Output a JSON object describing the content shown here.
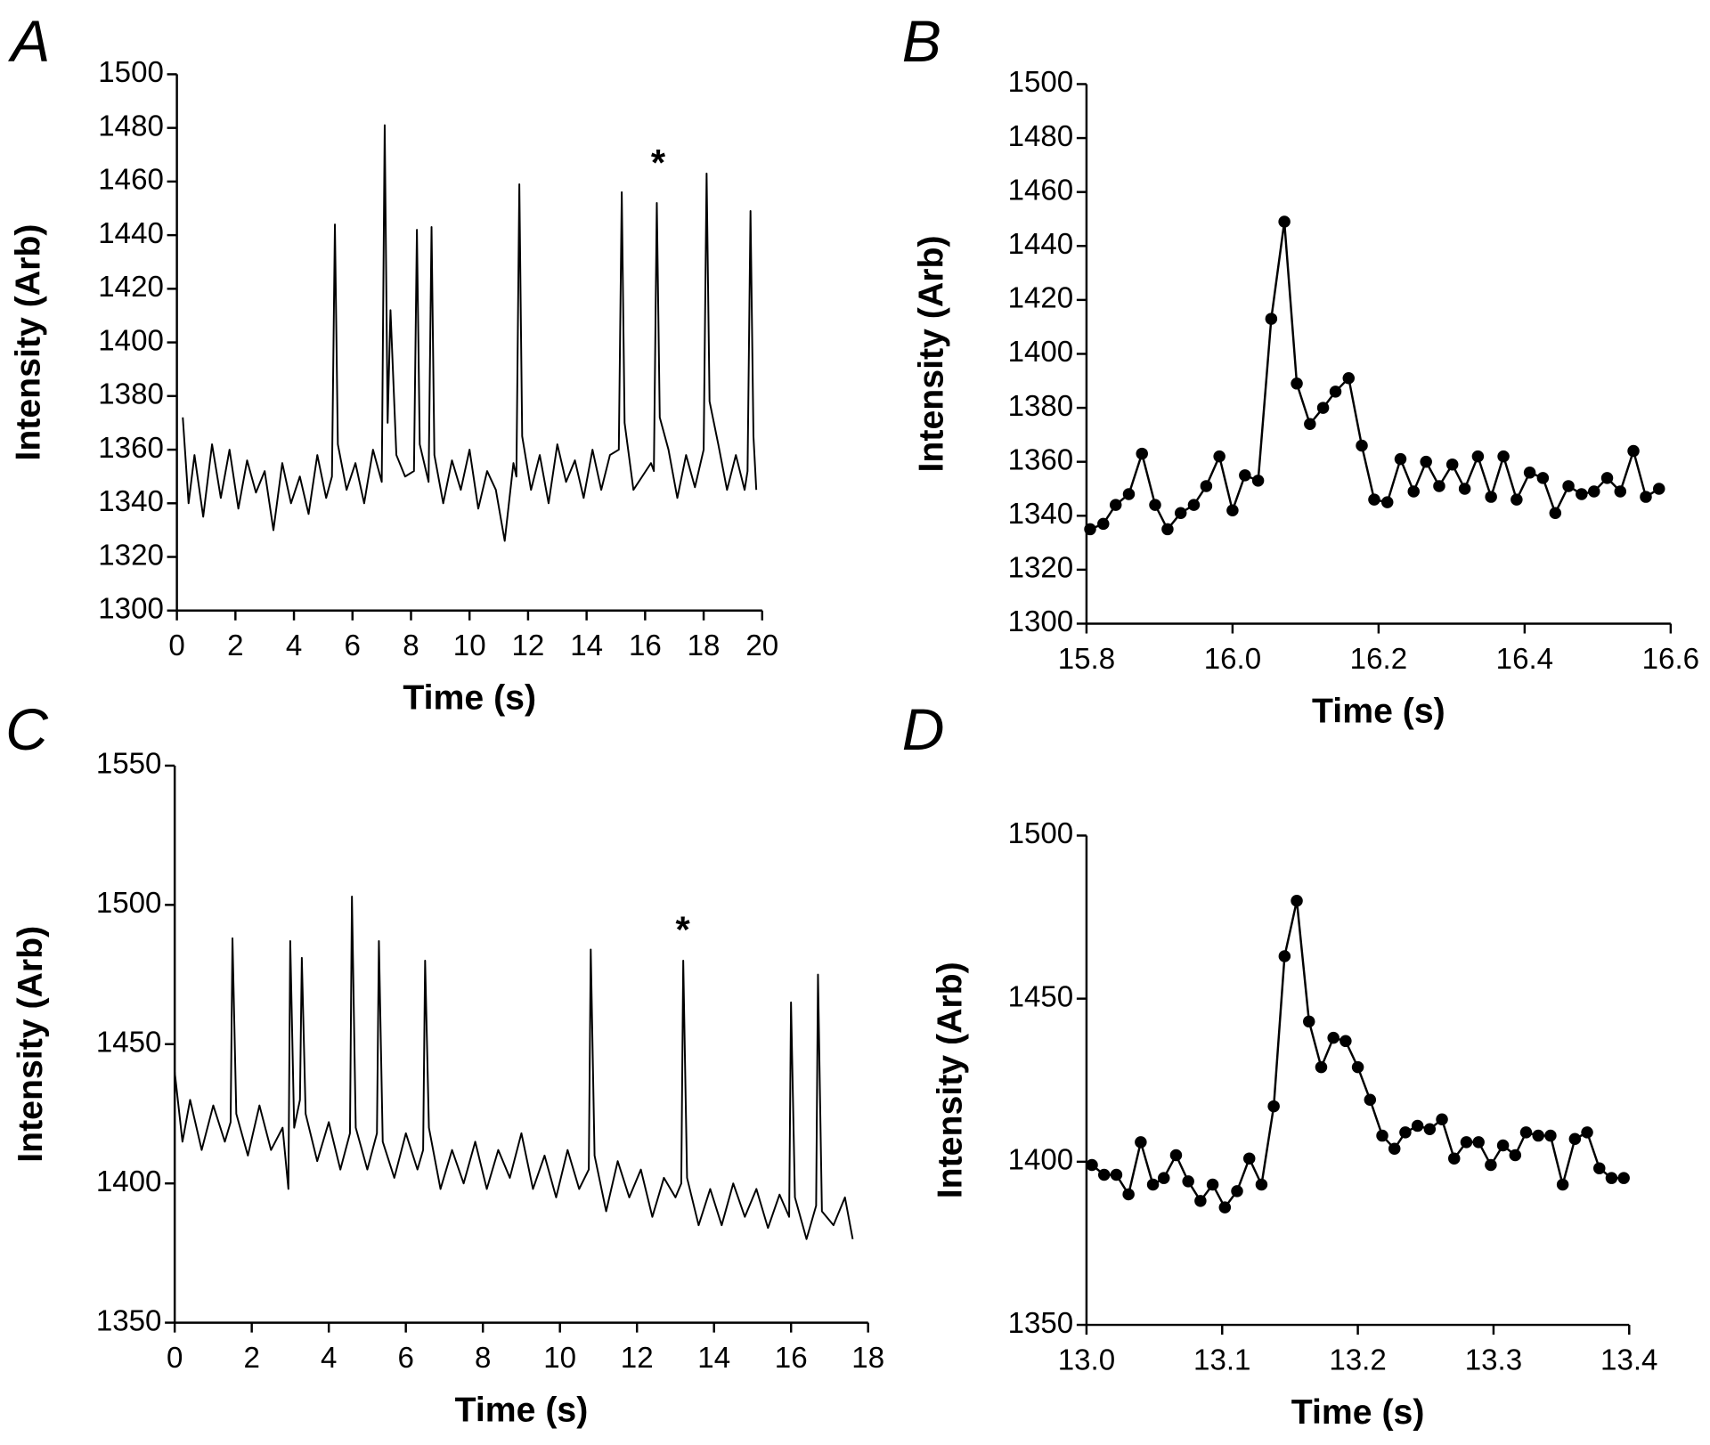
{
  "chart_data": [
    {
      "type": "line",
      "label": "A",
      "x_label": "Time (s)",
      "y_label": "Intensity (Arb)",
      "annotation": "*",
      "color": "#000000",
      "markers": false,
      "xlim": [
        0,
        20
      ],
      "ylim": [
        1300,
        1500
      ],
      "xticks": [
        0,
        2,
        4,
        6,
        8,
        10,
        12,
        14,
        16,
        18,
        20
      ],
      "yticks": [
        1300,
        1320,
        1340,
        1360,
        1380,
        1400,
        1420,
        1440,
        1460,
        1480,
        1500
      ],
      "x": [
        0.2,
        0.4,
        0.6,
        0.9,
        1.2,
        1.5,
        1.8,
        2.1,
        2.4,
        2.7,
        3.0,
        3.3,
        3.6,
        3.9,
        4.2,
        4.5,
        4.8,
        5.1,
        5.3,
        5.4,
        5.5,
        5.8,
        6.1,
        6.4,
        6.7,
        7.0,
        7.1,
        7.2,
        7.3,
        7.5,
        7.8,
        8.1,
        8.2,
        8.3,
        8.6,
        8.7,
        8.8,
        9.1,
        9.4,
        9.7,
        10.0,
        10.3,
        10.6,
        10.9,
        11.2,
        11.5,
        11.6,
        11.7,
        11.8,
        12.1,
        12.4,
        12.7,
        13.0,
        13.3,
        13.6,
        13.9,
        14.2,
        14.5,
        14.8,
        15.1,
        15.2,
        15.3,
        15.6,
        15.9,
        16.2,
        16.3,
        16.4,
        16.5,
        16.8,
        17.1,
        17.4,
        17.7,
        18.0,
        18.1,
        18.2,
        18.5,
        18.8,
        19.1,
        19.4,
        19.5,
        19.6,
        19.7,
        19.8
      ],
      "values": [
        1372,
        1340,
        1358,
        1335,
        1362,
        1342,
        1360,
        1338,
        1356,
        1344,
        1352,
        1330,
        1355,
        1340,
        1350,
        1336,
        1358,
        1342,
        1350,
        1444,
        1362,
        1345,
        1355,
        1340,
        1360,
        1348,
        1481,
        1370,
        1412,
        1358,
        1350,
        1352,
        1442,
        1362,
        1348,
        1443,
        1358,
        1340,
        1356,
        1345,
        1360,
        1338,
        1352,
        1345,
        1326,
        1355,
        1350,
        1459,
        1365,
        1345,
        1358,
        1340,
        1362,
        1348,
        1356,
        1342,
        1360,
        1345,
        1358,
        1360,
        1456,
        1370,
        1345,
        1350,
        1355,
        1352,
        1452,
        1372,
        1360,
        1342,
        1358,
        1346,
        1360,
        1463,
        1378,
        1362,
        1345,
        1358,
        1345,
        1352,
        1449,
        1365,
        1345
      ]
    },
    {
      "type": "line",
      "label": "B",
      "x_label": "Time (s)",
      "y_label": "Intensity (Arb)",
      "color": "#000000",
      "markers": true,
      "xlim": [
        15.8,
        16.6
      ],
      "ylim": [
        1300,
        1500
      ],
      "xticks": [
        15.8,
        {
          "value": 16,
          "label": "16.0"
        },
        16.2,
        16.4,
        16.6
      ],
      "yticks": [
        1300,
        1320,
        1340,
        1360,
        1380,
        1400,
        1420,
        1440,
        1460,
        1480,
        1500
      ],
      "x": [
        15.805,
        15.823,
        15.84,
        15.858,
        15.876,
        15.894,
        15.911,
        15.929,
        15.947,
        15.964,
        15.982,
        16.0,
        16.017,
        16.035,
        16.053,
        16.071,
        16.088,
        16.106,
        16.124,
        16.141,
        16.159,
        16.177,
        16.194,
        16.212,
        16.23,
        16.248,
        16.265,
        16.283,
        16.301,
        16.318,
        16.336,
        16.354,
        16.371,
        16.389,
        16.407,
        16.425,
        16.442,
        16.46,
        16.478,
        16.495,
        16.513,
        16.531,
        16.549,
        16.566,
        16.584
      ],
      "values": [
        1335,
        1337,
        1344,
        1348,
        1363,
        1344,
        1335,
        1341,
        1344,
        1351,
        1362,
        1342,
        1355,
        1353,
        1413,
        1449,
        1389,
        1374,
        1380,
        1386,
        1391,
        1366,
        1346,
        1345,
        1361,
        1349,
        1360,
        1351,
        1359,
        1350,
        1362,
        1347,
        1362,
        1346,
        1356,
        1354,
        1341,
        1351,
        1348,
        1349,
        1354,
        1349,
        1364,
        1347,
        1350
      ]
    },
    {
      "type": "line",
      "label": "C",
      "x_label": "Time (s)",
      "y_label": "Intensity (Arb)",
      "annotation": "*",
      "color": "#000000",
      "markers": false,
      "xlim": [
        0,
        18
      ],
      "ylim": [
        1350,
        1550
      ],
      "xticks": [
        0,
        2,
        4,
        6,
        8,
        10,
        12,
        14,
        16,
        18
      ],
      "yticks": [
        1350,
        1400,
        1450,
        1500,
        1550
      ],
      "x": [
        0,
        0.2,
        0.4,
        0.7,
        1.0,
        1.3,
        1.45,
        1.5,
        1.6,
        1.9,
        2.2,
        2.5,
        2.8,
        2.95,
        3.0,
        3.1,
        3.25,
        3.3,
        3.4,
        3.7,
        4.0,
        4.3,
        4.55,
        4.6,
        4.7,
        5.0,
        5.25,
        5.3,
        5.4,
        5.7,
        6.0,
        6.3,
        6.45,
        6.5,
        6.6,
        6.9,
        7.2,
        7.5,
        7.8,
        8.1,
        8.4,
        8.7,
        9.0,
        9.3,
        9.6,
        9.9,
        10.2,
        10.5,
        10.75,
        10.8,
        10.9,
        11.2,
        11.5,
        11.8,
        12.1,
        12.4,
        12.7,
        13.0,
        13.15,
        13.2,
        13.3,
        13.6,
        13.9,
        14.2,
        14.5,
        14.8,
        15.1,
        15.4,
        15.7,
        15.95,
        16.0,
        16.1,
        16.4,
        16.65,
        16.7,
        16.8,
        17.1,
        17.4,
        17.6
      ],
      "values": [
        1440,
        1415,
        1430,
        1412,
        1428,
        1415,
        1422,
        1488,
        1425,
        1410,
        1428,
        1412,
        1420,
        1398,
        1487,
        1420,
        1430,
        1481,
        1425,
        1408,
        1422,
        1405,
        1418,
        1503,
        1420,
        1405,
        1418,
        1487,
        1415,
        1402,
        1418,
        1405,
        1412,
        1480,
        1420,
        1398,
        1412,
        1400,
        1415,
        1398,
        1412,
        1402,
        1418,
        1398,
        1410,
        1395,
        1412,
        1398,
        1405,
        1484,
        1410,
        1390,
        1408,
        1395,
        1405,
        1388,
        1402,
        1395,
        1400,
        1480,
        1402,
        1385,
        1398,
        1385,
        1400,
        1388,
        1398,
        1384,
        1396,
        1388,
        1465,
        1395,
        1380,
        1392,
        1475,
        1390,
        1385,
        1395,
        1380
      ]
    },
    {
      "type": "line",
      "label": "D",
      "x_label": "Time (s)",
      "y_label": "Intensity (Arb)",
      "color": "#000000",
      "markers": true,
      "xlim": [
        13.0,
        13.4
      ],
      "ylim": [
        1350,
        1500
      ],
      "xticks": [
        {
          "value": 13,
          "label": "13.0"
        },
        13.1,
        13.2,
        13.3,
        13.4
      ],
      "yticks": [
        1350,
        1400,
        1450,
        1500
      ],
      "x": [
        13.004,
        13.013,
        13.022,
        13.031,
        13.04,
        13.049,
        13.057,
        13.066,
        13.075,
        13.084,
        13.093,
        13.102,
        13.111,
        13.12,
        13.129,
        13.138,
        13.146,
        13.155,
        13.164,
        13.173,
        13.182,
        13.191,
        13.2,
        13.209,
        13.218,
        13.227,
        13.235,
        13.244,
        13.253,
        13.262,
        13.271,
        13.28,
        13.289,
        13.298,
        13.307,
        13.316,
        13.324,
        13.333,
        13.342,
        13.351,
        13.36,
        13.369,
        13.378,
        13.387,
        13.396
      ],
      "values": [
        1399,
        1396,
        1396,
        1390,
        1406,
        1393,
        1395,
        1402,
        1394,
        1388,
        1393,
        1386,
        1391,
        1401,
        1393,
        1417,
        1463,
        1480,
        1443,
        1429,
        1438,
        1437,
        1429,
        1419,
        1408,
        1404,
        1409,
        1411,
        1410,
        1413,
        1401,
        1406,
        1406,
        1399,
        1405,
        1402,
        1409,
        1408,
        1408,
        1393,
        1407,
        1409,
        1398,
        1395,
        1395
      ]
    }
  ]
}
